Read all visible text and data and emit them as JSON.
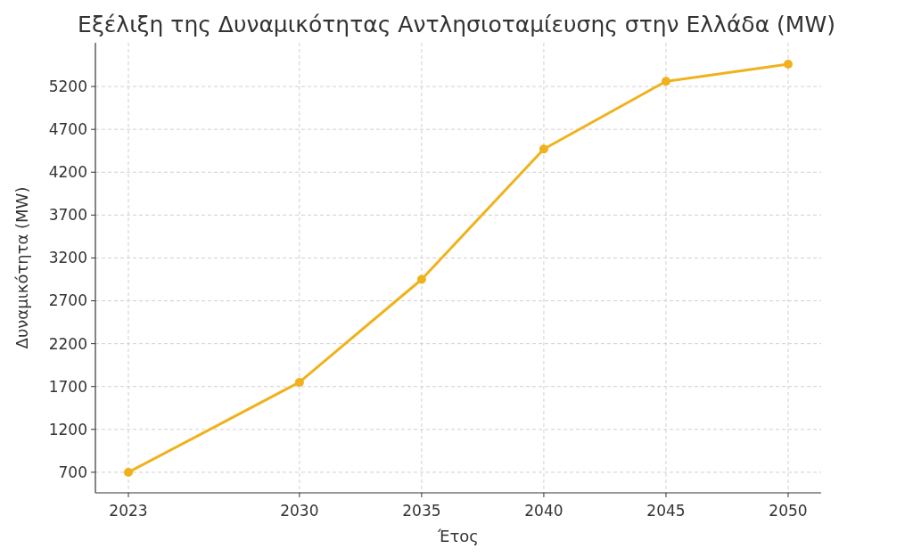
{
  "chart_data": {
    "type": "line",
    "title": "Εξέλιξη της Δυναμικότητας Αντλησιοταμίευσης στην Ελλάδα (MW)",
    "xlabel": "Έτος",
    "ylabel": "Δυναμικότητα (MW)",
    "x": [
      2023,
      2030,
      2035,
      2040,
      2045,
      2050
    ],
    "series": [
      {
        "color": "#f0b21c",
        "values": [
          700,
          1750,
          2950,
          4470,
          5260,
          5460
        ]
      }
    ],
    "xlim": [
      2021.65,
      2051.35
    ],
    "ylim": [
      460,
      5710
    ],
    "xticks": [
      2023,
      2030,
      2035,
      2040,
      2045,
      2050
    ],
    "yticks": [
      700,
      1200,
      1700,
      2200,
      2700,
      3200,
      3700,
      4200,
      4700,
      5200
    ],
    "grid": true,
    "marker": "circle",
    "line_style": "solid"
  }
}
